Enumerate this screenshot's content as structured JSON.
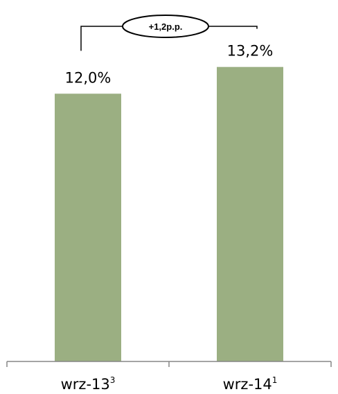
{
  "chart_data": {
    "type": "bar",
    "categories": [
      "wrz-13",
      "wrz-14"
    ],
    "category_superscripts": [
      "3",
      "1"
    ],
    "values": [
      12.0,
      13.2
    ],
    "value_labels": [
      "12,0%",
      "13,2%"
    ],
    "bar_color": "#9BAF82",
    "axis_color": "#868686",
    "annotation": "+1,2p.p.",
    "ylim": [
      0,
      16.2
    ],
    "grid": false,
    "legend": "none"
  }
}
